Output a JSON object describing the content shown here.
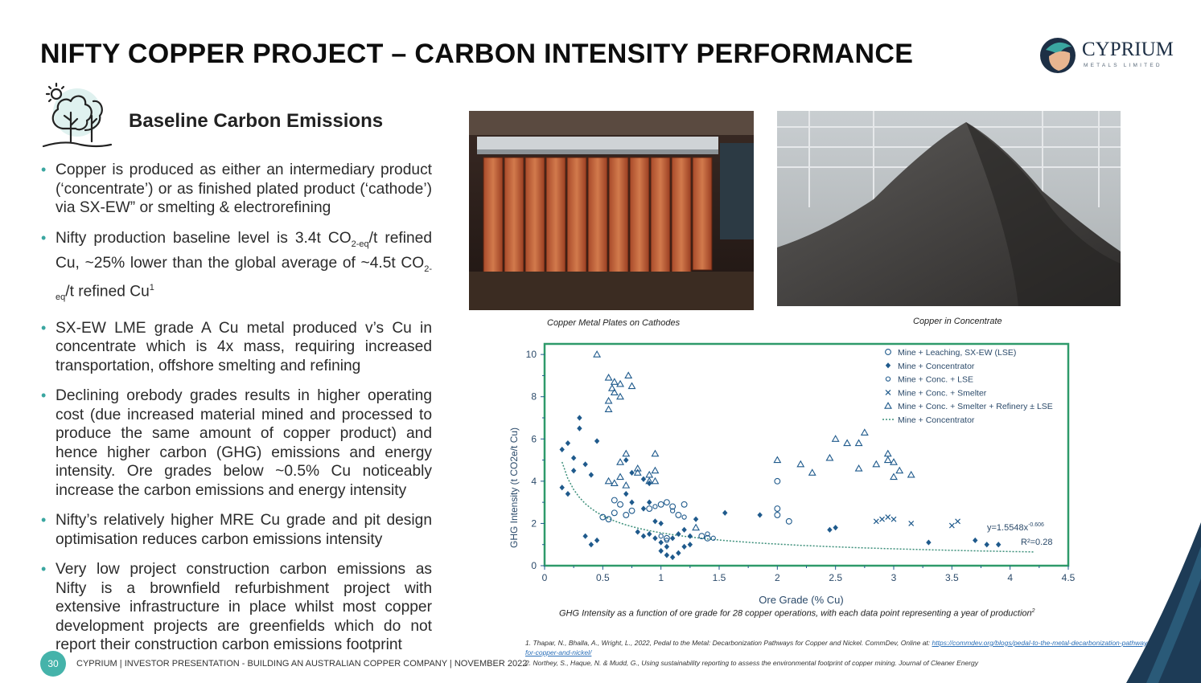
{
  "title": "NIFTY COPPER PROJECT – CARBON INTENSITY PERFORMANCE",
  "logo": {
    "name": "CYPRIUM",
    "sub": "METALS LIMITED"
  },
  "section_heading": "Baseline Carbon Emissions",
  "bullets": [
    "Copper is produced as either an intermediary product (‘concentrate’) or as finished plated product (‘cathode’) via SX-EW” or smelting & electrorefining",
    "",
    "SX-EW LME grade A Cu metal produced v’s Cu in concentrate which is 4x mass, requiring increased transportation, offshore smelting and refining",
    "Declining orebody grades results in higher operating cost (due increased material mined and processed to produce the same amount of copper product) and hence higher carbon (GHG) emissions and energy intensity. Ore grades below ~0.5% Cu noticeably increase the carbon emissions and energy intensity",
    "Nifty’s relatively higher MRE Cu grade and pit design optimisation reduces carbon emissions intensity",
    "Very low project construction carbon emissions as Nifty is a brownfield refurbishment project with extensive infrastructure in place whilst most copper development projects are greenfields which do not report their construction carbon emissions footprint"
  ],
  "bullet2": {
    "p1": "Nifty production baseline level is 3.4t CO",
    "sub1": "2-eq",
    "p2": "/t refined Cu, ~25% lower than the global average of ~4.5t CO",
    "sub2": "2-eq",
    "p3": "/t refined Cu",
    "sup": "1"
  },
  "photo_captions": [
    "Copper Metal Plates on Cathodes",
    "Copper in Concentrate"
  ],
  "chart_caption": "GHG Intensity as a function of ore grade for 28 copper operations, with each data point representing a year of production",
  "chart_caption_sup": "2",
  "chart_data": {
    "type": "scatter",
    "xlabel": "Ore Grade (% Cu)",
    "ylabel": "GHG Intensity (t CO2e/t Cu)",
    "xlim": [
      0,
      4.5
    ],
    "ylim": [
      0,
      10.5
    ],
    "xticks": [
      "0",
      "0.5",
      "1",
      "1.5",
      "2",
      "2.5",
      "3",
      "3.5",
      "4",
      "4.5"
    ],
    "yticks": [
      "0",
      "2",
      "4",
      "6",
      "8",
      "10"
    ],
    "legend_position": "top-right",
    "equation": "y=1.5548x",
    "equation_exp": "-0.606",
    "r2": "R²=0.28",
    "series": [
      {
        "name": "Mine + Leaching, SX-EW (LSE)",
        "marker": "circle-open",
        "points": [
          [
            0.5,
            2.3
          ],
          [
            0.55,
            2.2
          ],
          [
            0.6,
            2.5
          ],
          [
            0.65,
            2.9
          ],
          [
            0.7,
            2.4
          ],
          [
            0.75,
            2.6
          ],
          [
            0.6,
            3.1
          ],
          [
            0.9,
            2.7
          ],
          [
            1.0,
            2.9
          ],
          [
            1.05,
            3.0
          ],
          [
            1.1,
            2.8
          ],
          [
            1.2,
            2.9
          ],
          [
            1.15,
            2.4
          ],
          [
            1.05,
            1.3
          ],
          [
            1.35,
            1.4
          ],
          [
            1.4,
            1.3
          ],
          [
            2.0,
            4.0
          ],
          [
            2.0,
            2.4
          ],
          [
            2.0,
            2.7
          ],
          [
            2.1,
            2.1
          ]
        ]
      },
      {
        "name": "Mine + Concentrator",
        "marker": "diamond-filled",
        "points": [
          [
            0.15,
            5.5
          ],
          [
            0.2,
            5.8
          ],
          [
            0.25,
            5.1
          ],
          [
            0.3,
            6.5
          ],
          [
            0.3,
            7.0
          ],
          [
            0.35,
            4.8
          ],
          [
            0.4,
            4.3
          ],
          [
            0.25,
            4.5
          ],
          [
            0.45,
            5.9
          ],
          [
            0.15,
            3.7
          ],
          [
            0.2,
            3.4
          ],
          [
            0.35,
            1.4
          ],
          [
            0.4,
            1.0
          ],
          [
            0.45,
            1.2
          ],
          [
            0.7,
            5.0
          ],
          [
            0.75,
            4.4
          ],
          [
            0.85,
            4.1
          ],
          [
            0.9,
            3.9
          ],
          [
            0.7,
            3.4
          ],
          [
            0.75,
            3.0
          ],
          [
            0.9,
            3.0
          ],
          [
            0.85,
            2.7
          ],
          [
            0.95,
            2.1
          ],
          [
            1.0,
            2.0
          ],
          [
            0.8,
            1.6
          ],
          [
            0.85,
            1.4
          ],
          [
            0.9,
            1.5
          ],
          [
            0.95,
            1.3
          ],
          [
            1.0,
            1.1
          ],
          [
            1.05,
            0.9
          ],
          [
            1.1,
            1.3
          ],
          [
            1.15,
            1.5
          ],
          [
            1.2,
            1.7
          ],
          [
            1.25,
            1.4
          ],
          [
            1.0,
            0.7
          ],
          [
            1.05,
            0.5
          ],
          [
            1.1,
            0.4
          ],
          [
            1.15,
            0.6
          ],
          [
            1.2,
            0.9
          ],
          [
            1.25,
            1.0
          ],
          [
            1.3,
            2.2
          ],
          [
            1.55,
            2.5
          ],
          [
            1.85,
            2.4
          ],
          [
            2.45,
            1.7
          ],
          [
            2.5,
            1.8
          ],
          [
            3.3,
            1.1
          ],
          [
            3.7,
            1.2
          ],
          [
            3.8,
            1.0
          ],
          [
            3.9,
            1.0
          ]
        ]
      },
      {
        "name": "Mine + Conc. + LSE",
        "marker": "circle-small",
        "points": [
          [
            0.95,
            2.8
          ],
          [
            1.1,
            2.6
          ],
          [
            1.2,
            2.3
          ],
          [
            1.4,
            1.5
          ],
          [
            1.45,
            1.3
          ],
          [
            1.0,
            1.4
          ],
          [
            1.05,
            1.2
          ]
        ]
      },
      {
        "name": "Mine + Conc. + Smelter",
        "marker": "x",
        "points": [
          [
            2.85,
            2.1
          ],
          [
            2.9,
            2.2
          ],
          [
            2.95,
            2.3
          ],
          [
            3.0,
            2.2
          ],
          [
            3.15,
            2.0
          ],
          [
            3.5,
            1.9
          ],
          [
            3.55,
            2.1
          ]
        ]
      },
      {
        "name": "Mine + Conc. + Smelter + Refinery ± LSE",
        "marker": "triangle-open",
        "points": [
          [
            0.45,
            10.0
          ],
          [
            0.55,
            8.9
          ],
          [
            0.6,
            8.7
          ],
          [
            0.58,
            8.4
          ],
          [
            0.65,
            8.6
          ],
          [
            0.72,
            9.0
          ],
          [
            0.75,
            8.5
          ],
          [
            0.55,
            7.8
          ],
          [
            0.6,
            8.2
          ],
          [
            0.65,
            8.0
          ],
          [
            0.55,
            7.4
          ],
          [
            0.7,
            5.3
          ],
          [
            0.65,
            4.9
          ],
          [
            0.8,
            4.6
          ],
          [
            0.9,
            4.3
          ],
          [
            0.95,
            4.0
          ],
          [
            0.55,
            4.0
          ],
          [
            0.6,
            3.9
          ],
          [
            0.65,
            4.2
          ],
          [
            0.7,
            3.8
          ],
          [
            0.8,
            4.4
          ],
          [
            0.95,
            4.5
          ],
          [
            0.9,
            4.0
          ],
          [
            0.95,
            5.3
          ],
          [
            1.3,
            1.8
          ],
          [
            2.0,
            5.0
          ],
          [
            2.2,
            4.8
          ],
          [
            2.3,
            4.4
          ],
          [
            2.5,
            6.0
          ],
          [
            2.45,
            5.1
          ],
          [
            2.6,
            5.8
          ],
          [
            2.7,
            5.8
          ],
          [
            2.7,
            4.6
          ],
          [
            2.75,
            6.3
          ],
          [
            2.85,
            4.8
          ],
          [
            2.95,
            5.3
          ],
          [
            2.95,
            5.0
          ],
          [
            3.0,
            4.9
          ],
          [
            3.05,
            4.5
          ],
          [
            3.0,
            4.2
          ],
          [
            3.15,
            4.3
          ]
        ]
      },
      {
        "name": "Mine + Concentrator",
        "marker": "dashed-line",
        "points": []
      }
    ]
  },
  "footer": {
    "page": "30",
    "text": "CYPRIUM | INVESTOR PRESENTATION - BUILDING AN AUSTRALIAN COPPER COMPANY | NOVEMBER 2022"
  },
  "refs": {
    "r1": "1. Thapar, N., Bhalla, A., Wright, L., 2022, Pedal to the Metal: Decarbonization Pathways for Copper and Nickel. CommDev, Online at: ",
    "r1_link": "https://commdev.org/blogs/pedal-to-the-metal-decarbonization-pathways-for-copper-and-nickel/",
    "r2": "2. Northey, S., Haque, N. & Mudd, G., Using sustainability reporting to assess the environmental footprint of copper mining. Journal of Cleaner Energy"
  },
  "colors": {
    "accent": "#3aa6a0",
    "plot": "#1f5a8c",
    "frame": "#2e9a6a",
    "navy": "#1d2f45"
  }
}
